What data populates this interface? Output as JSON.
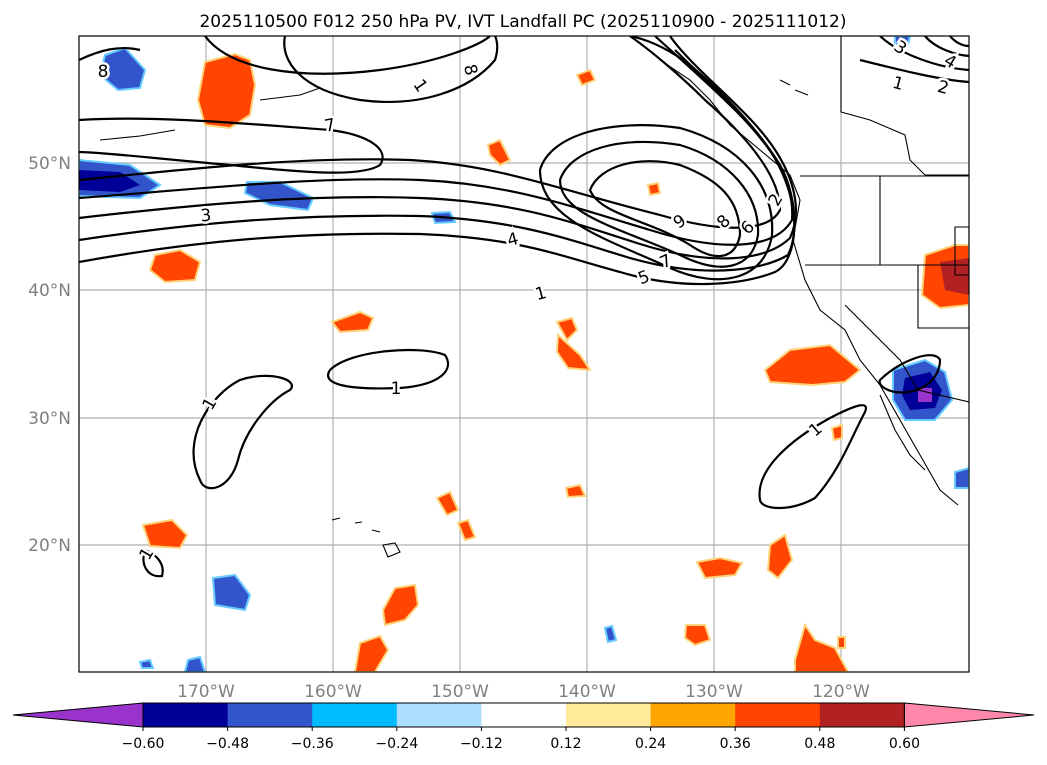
{
  "title": "2025110500 F012 250 hPa PV, IVT Landfall PC (2025110900 - 2025111012)",
  "axes": {
    "lon_labels": [
      "170°W",
      "160°W",
      "150°W",
      "140°W",
      "130°W",
      "120°W"
    ],
    "lat_labels": [
      "50°N",
      "40°N",
      "30°N",
      "20°N"
    ],
    "lon_range": [
      -180,
      -110
    ],
    "lat_range": [
      10,
      60
    ]
  },
  "colorbar": {
    "ticks": [
      "−0.60",
      "−0.48",
      "−0.36",
      "−0.24",
      "−0.12",
      "0.12",
      "0.24",
      "0.36",
      "0.48",
      "0.60"
    ],
    "colors": [
      "#9933cc",
      "#000099",
      "#3355cc",
      "#00bbff",
      "#aaddff",
      "#ffffff",
      "#ffeb99",
      "#ffa500",
      "#ff4500",
      "#b22222",
      "#ff88aa"
    ]
  },
  "contour_labels": [
    "8",
    "7",
    "1",
    "8",
    "3",
    "4",
    "1",
    "5",
    "7",
    "9",
    "8",
    "6",
    "2",
    "1",
    "2",
    "3",
    "4",
    "1",
    "1",
    "1",
    "1"
  ],
  "chart_data": {
    "type": "map-contour",
    "field": "250 hPa PV, IVT Landfall PC",
    "init": "2025110500",
    "forecast_hour": "F012",
    "valid_range": "2025110900 - 2025111012",
    "shading_levels": [
      -0.6,
      -0.48,
      -0.36,
      -0.24,
      -0.12,
      0.12,
      0.24,
      0.36,
      0.48,
      0.6
    ],
    "contour_values": [
      1,
      2,
      3,
      4,
      5,
      6,
      7,
      8,
      9
    ]
  }
}
